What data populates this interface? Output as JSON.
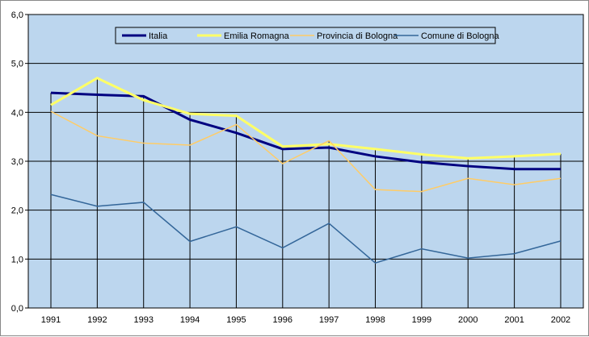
{
  "chart_data": {
    "type": "line",
    "title": "",
    "xlabel": "",
    "ylabel": "",
    "ylim": [
      0,
      6
    ],
    "yticks": [
      "0,0",
      "1,0",
      "2,0",
      "3,0",
      "4,0",
      "5,0",
      "6,0"
    ],
    "grid": true,
    "legend_position": "top-center",
    "categories": [
      "1991",
      "1992",
      "1993",
      "1994",
      "1995",
      "1996",
      "1997",
      "1998",
      "1999",
      "2000",
      "2001",
      "2002"
    ],
    "series": [
      {
        "name": "Italia",
        "color": "#000080",
        "values": [
          4.4,
          4.36,
          4.33,
          3.85,
          3.58,
          3.25,
          3.28,
          3.1,
          2.98,
          2.9,
          2.84,
          2.84
        ]
      },
      {
        "name": "Emilia Romagna",
        "color": "#FFFF66",
        "values": [
          4.15,
          4.7,
          4.25,
          3.97,
          3.93,
          3.3,
          3.35,
          3.25,
          3.14,
          3.06,
          3.1,
          3.15
        ]
      },
      {
        "name": "Provincia di Bologna",
        "color": "#FFCC66",
        "values": [
          4.02,
          3.52,
          3.37,
          3.33,
          3.75,
          2.95,
          3.42,
          2.42,
          2.38,
          2.65,
          2.52,
          2.65
        ]
      },
      {
        "name": "Comune di Bologna",
        "color": "#336699",
        "values": [
          2.32,
          2.08,
          2.16,
          1.36,
          1.66,
          1.23,
          1.73,
          0.92,
          1.21,
          1.02,
          1.11,
          1.37
        ]
      }
    ]
  }
}
